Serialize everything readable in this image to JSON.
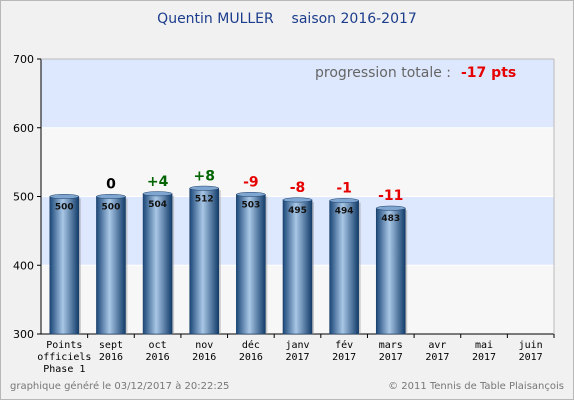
{
  "chart_data": {
    "type": "bar",
    "title": "Quentin MULLER    saison 2016-2017",
    "categories": [
      [
        "Points",
        "officiels",
        "Phase 1"
      ],
      [
        "sept",
        "2016"
      ],
      [
        "oct",
        "2016"
      ],
      [
        "nov",
        "2016"
      ],
      [
        "déc",
        "2016"
      ],
      [
        "janv",
        "2017"
      ],
      [
        "fév",
        "2017"
      ],
      [
        "mars",
        "2017"
      ],
      [
        "avr",
        "2017"
      ],
      [
        "mai",
        "2017"
      ],
      [
        "juin",
        "2017"
      ]
    ],
    "values": [
      500,
      500,
      504,
      512,
      503,
      495,
      494,
      483,
      null,
      null,
      null
    ],
    "value_labels": [
      "500",
      "500",
      "504",
      "512",
      "503",
      "495",
      "494",
      "483",
      "",
      "",
      ""
    ],
    "deltas": [
      "",
      "0",
      "+4",
      "+8",
      "-9",
      "-8",
      "-1",
      "-11",
      "",
      "",
      ""
    ],
    "delta_colors": [
      "#000000",
      "#000000",
      "#006400",
      "#006400",
      "#e60000",
      "#e60000",
      "#e60000",
      "#e60000",
      "#000000",
      "#000000",
      "#000000"
    ],
    "ylim": [
      300,
      700
    ],
    "yticks": [
      "300",
      "400",
      "500",
      "600",
      "700"
    ],
    "grid": true,
    "band_colors": [
      "#f7f7f7",
      "#dde7fd"
    ],
    "bar_colors": {
      "edge": "#1b4778",
      "mid": "#a9c7e6",
      "dark": "#123c6a"
    }
  },
  "progression": {
    "label": "progression totale :",
    "value": "-17 pts"
  },
  "footer": {
    "left": "graphique généré le 03/12/2017 à 20:22:25",
    "right": "© 2011 Tennis de Table Plaisançois"
  }
}
